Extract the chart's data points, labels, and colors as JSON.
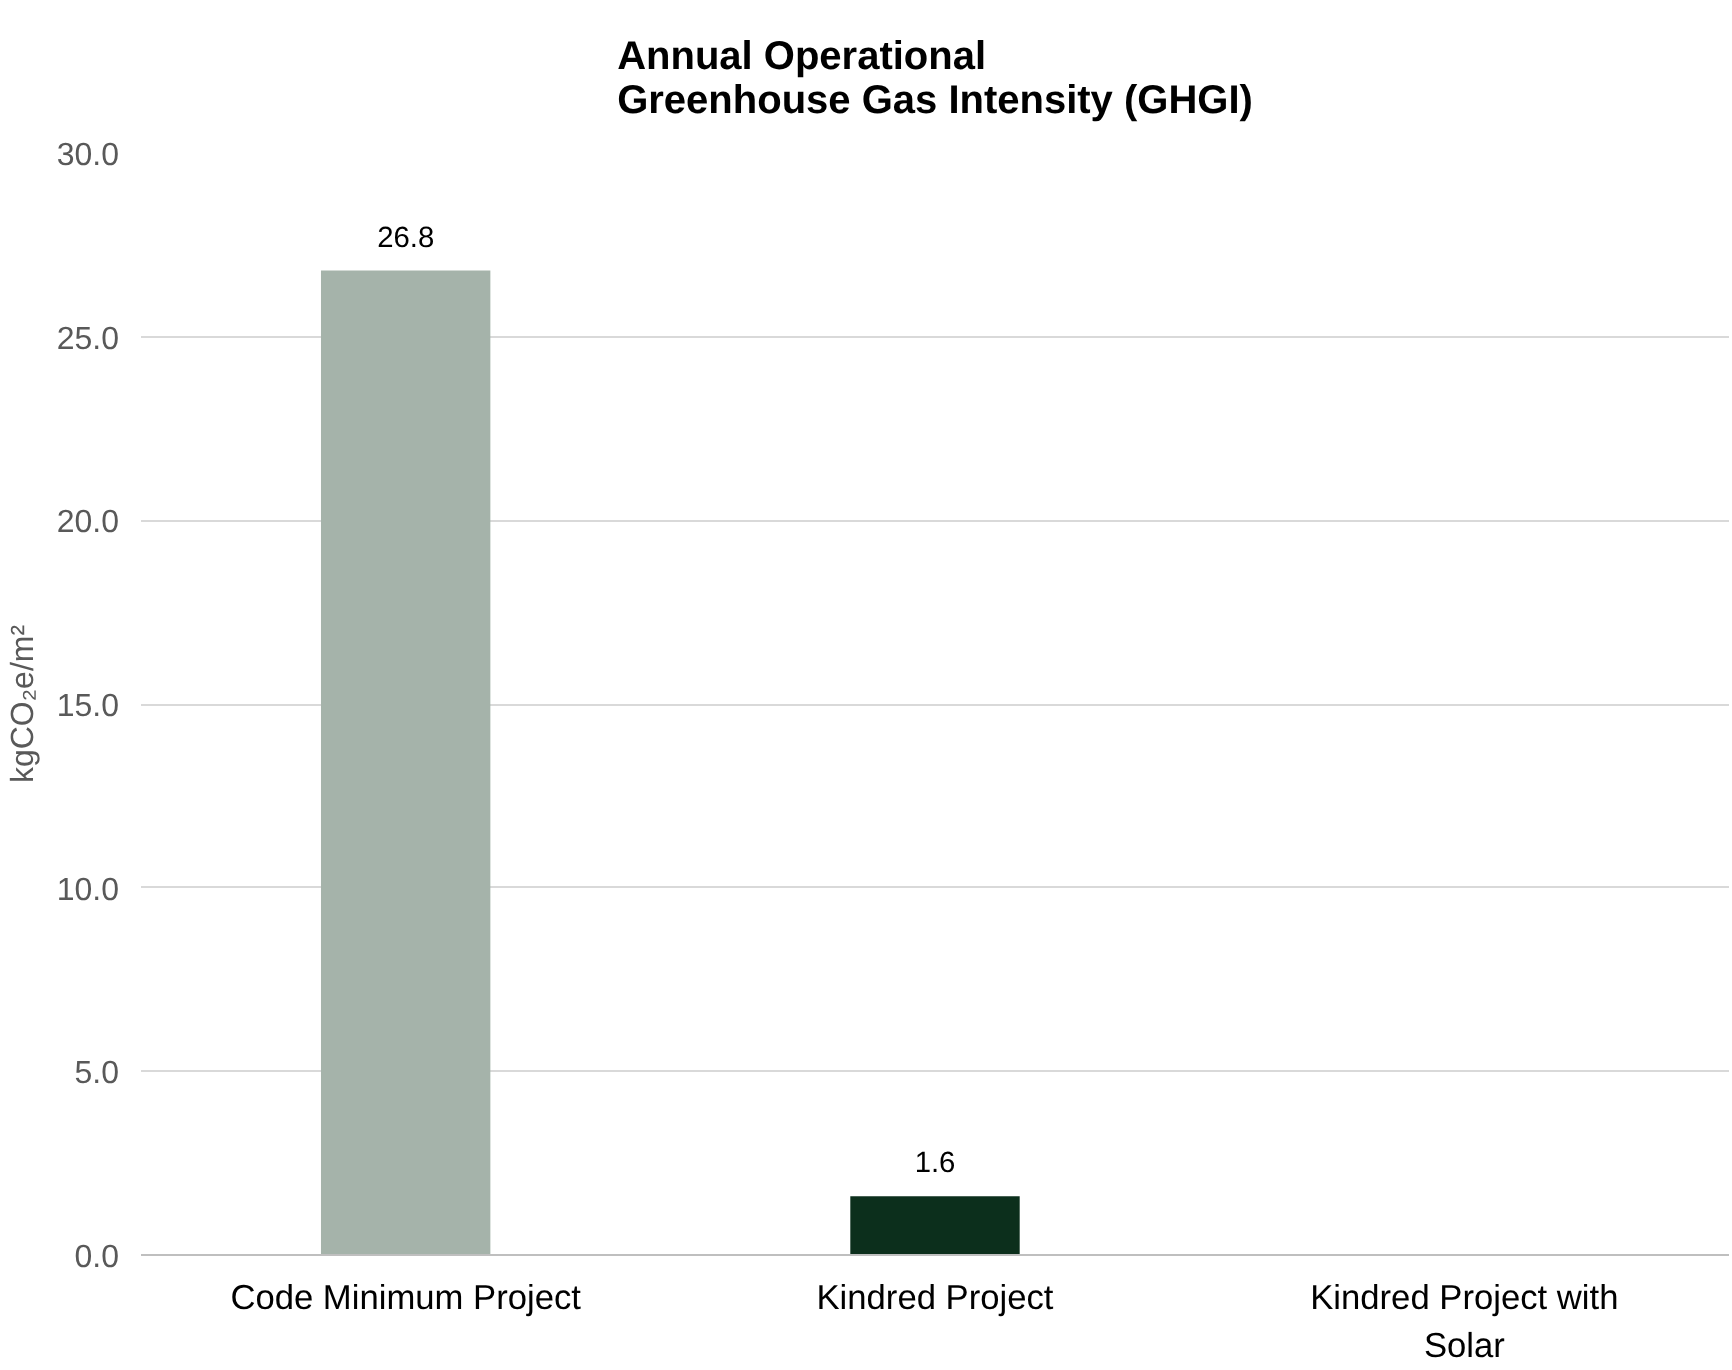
{
  "chart_data": {
    "type": "bar",
    "title": "Annual Operational\nGreenhouse Gas Intensity (GHGI)",
    "ylabel": "kgCO₂e/m²",
    "categories": [
      "Code Minimum Project",
      "Kindred Project",
      "Kindred Project with Solar"
    ],
    "values": [
      26.8,
      1.6,
      null
    ],
    "colors": [
      "#a5b3aa",
      "#0c2f1c",
      "#0c2f1c"
    ],
    "value_labels": [
      "26.8",
      "1.6",
      null
    ],
    "ylim": [
      0,
      30
    ],
    "yticks": [
      {
        "value": 0,
        "label": "0.0"
      },
      {
        "value": 5,
        "label": "5.0"
      },
      {
        "value": 10,
        "label": "10.0"
      },
      {
        "value": 15,
        "label": "15.0"
      },
      {
        "value": 20,
        "label": "20.0"
      },
      {
        "value": 25,
        "label": "25.0"
      },
      {
        "value": 30,
        "label": "30.0"
      }
    ],
    "grid": "y"
  }
}
